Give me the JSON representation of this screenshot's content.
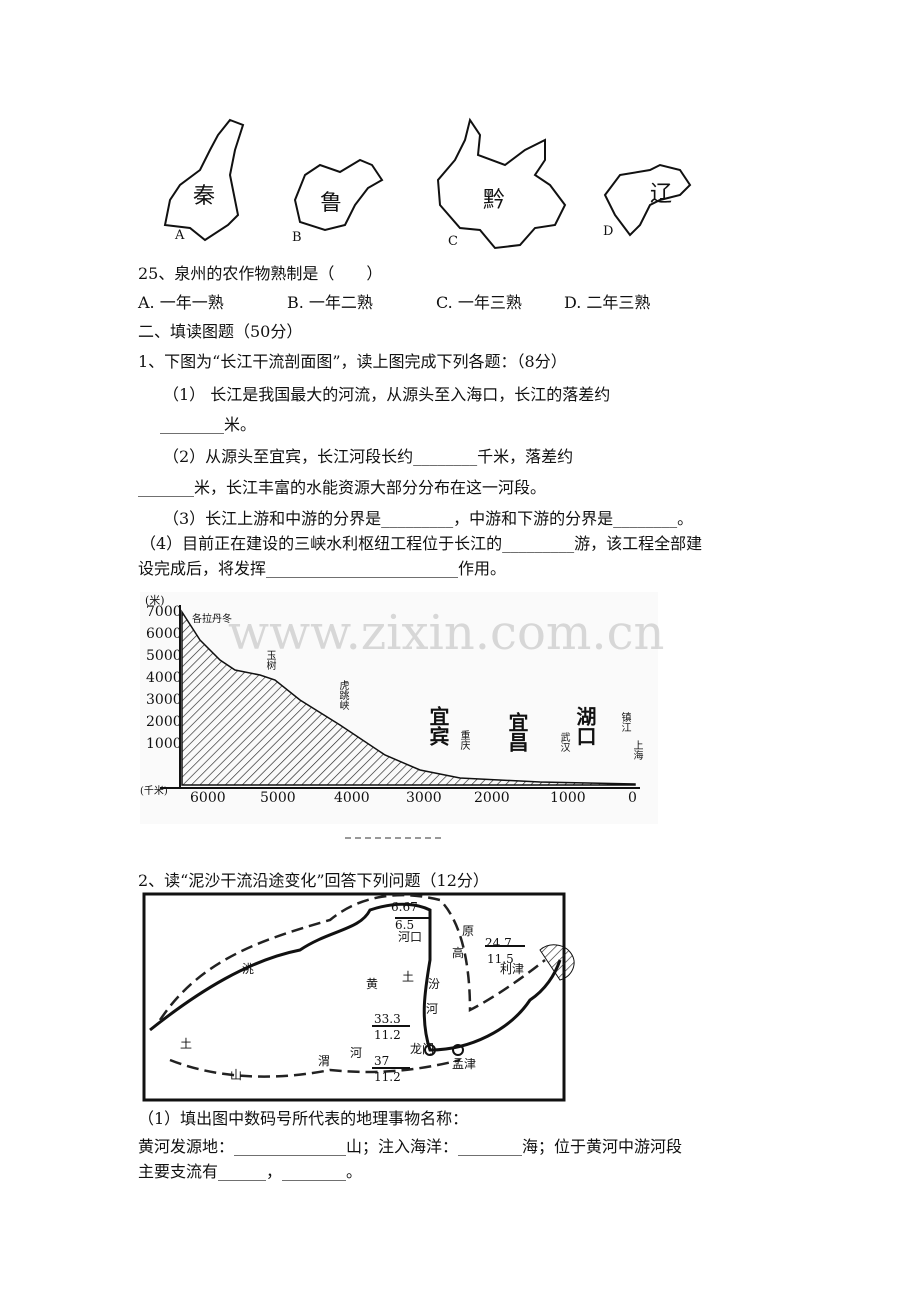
{
  "province_maps": [
    {
      "name": "秦",
      "letter": "A"
    },
    {
      "name": "鲁",
      "letter": "B"
    },
    {
      "name": "黔",
      "letter": "C"
    },
    {
      "name": "辽",
      "letter": "D"
    }
  ],
  "question25": {
    "stem": "25、泉州的农作物熟制是（　　）",
    "options": [
      "A. 一年一熟",
      "B. 一年二熟",
      "C. 一年三熟",
      "D. 二年三熟"
    ]
  },
  "section2": {
    "title": "二、填读图题（50分）"
  },
  "question1": {
    "stem": "1、下图为“长江干流剖面图”，读上图完成下列各题：（8分）",
    "lines": [
      "（1） 长江是我国最大的河流，从源头至入海口，长江的落差约",
      "________米。",
      "（2）从源头至宜宾，长江河段长约________千米，落差约",
      "_______米，长江丰富的水能资源大部分分布在这一河段。",
      "（3）长江上游和中游的分界是_________，中游和下游的分界是________。",
      "（4）目前正在建设的三峡水利枢纽工程位于长江的_________游，该工程全部建",
      "设完成后，将发挥________________________作用。"
    ]
  },
  "profile": {
    "y_unit": "(米)",
    "yticks": [
      "7000",
      "6000",
      "5000",
      "4000",
      "3000",
      "2000",
      "1000"
    ],
    "x_unit": "(千米)",
    "xticks": [
      "6000",
      "5000",
      "4000",
      "3000",
      "2000",
      "1000",
      "0"
    ],
    "places": [
      "各拉丹冬",
      "玉树",
      "虎跳峡",
      "宜宾",
      "重庆",
      "宜昌",
      "武汉",
      "湖口",
      "镇江",
      "上海"
    ]
  },
  "watermark": "www.zixin.com.cn",
  "question2": {
    "stem": "2、读“泥沙干流沿途变化”回答下列问题（12分）",
    "map_labels": [
      "6.67",
      "6.5",
      "24.7",
      "11.5",
      "33.3",
      "11.2",
      "37",
      "11.2",
      "河口",
      "原",
      "高",
      "黄",
      "土",
      "汾",
      "河",
      "龙门",
      "孟津",
      "利津",
      "洮",
      "渭",
      "河",
      "土",
      "山"
    ],
    "sub1": "（1）填出图中数码号所代表的地理事物名称：",
    "lines": [
      "黄河发源地：______________山；注入海洋：________海；位于黄河中游河段",
      "主要支流有______，________。"
    ]
  }
}
